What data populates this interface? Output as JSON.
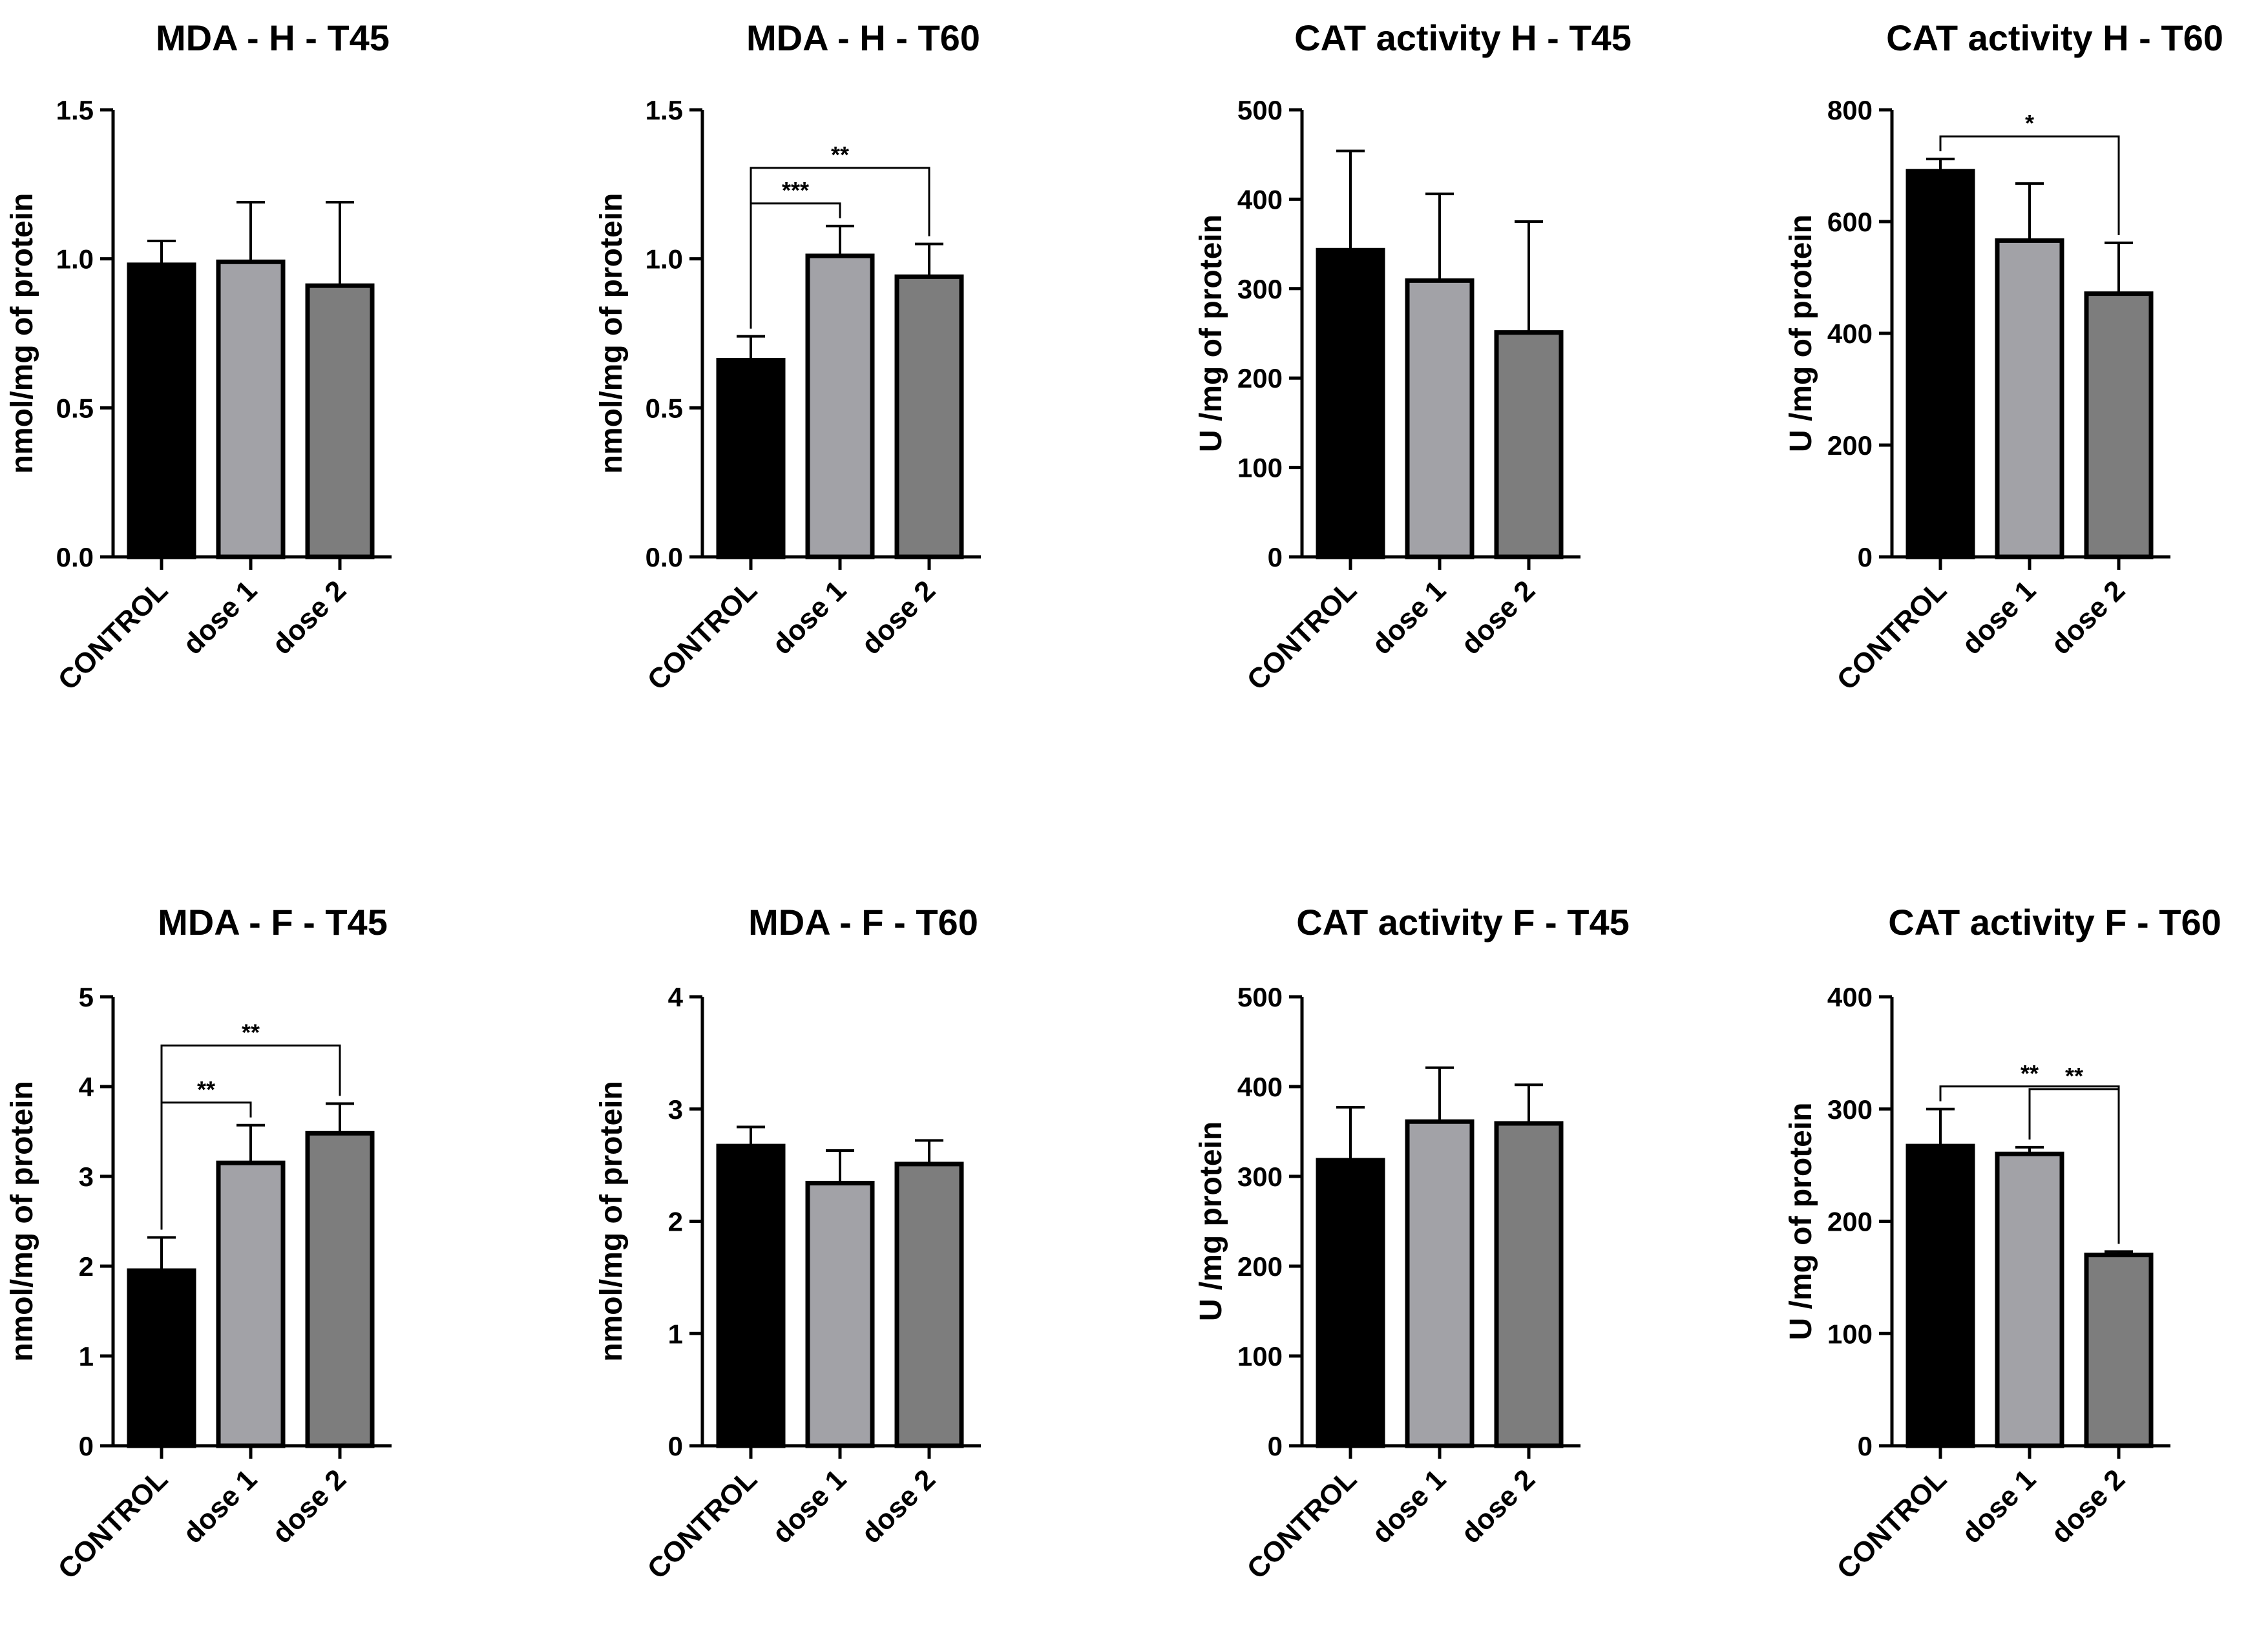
{
  "colors": {
    "control": "#000000",
    "dose1": "#a2a2a7",
    "dose2": "#7d7d7d",
    "axis": "#000000"
  },
  "chart_data": [
    {
      "type": "bar",
      "title": "MDA - H - T45",
      "ylabel": "nmol/mg of protein",
      "categories": [
        "CONTROL",
        "dose 1",
        "dose 2"
      ],
      "ylim": [
        0,
        1.5
      ],
      "ticks": [
        0,
        0.5,
        1,
        1.5
      ],
      "tick_labels": [
        "0.0",
        "0.5",
        "1.0",
        "1.5"
      ],
      "values": [
        0.98,
        0.99,
        0.91
      ],
      "errors": [
        0.08,
        0.2,
        0.28
      ],
      "significance": []
    },
    {
      "type": "bar",
      "title": "MDA - H - T60",
      "ylabel": "nmol/mg of protein",
      "categories": [
        "CONTROL",
        "dose 1",
        "dose 2"
      ],
      "ylim": [
        0,
        1.5
      ],
      "ticks": [
        0,
        0.5,
        1,
        1.5
      ],
      "tick_labels": [
        "0.0",
        "0.5",
        "1.0",
        "1.5"
      ],
      "values": [
        0.66,
        1.01,
        0.94
      ],
      "errors": [
        0.08,
        0.1,
        0.11
      ],
      "significance": [
        {
          "from": 0,
          "to": 1,
          "label": "***"
        },
        {
          "from": 0,
          "to": 2,
          "label": "**"
        }
      ]
    },
    {
      "type": "bar",
      "title": "CAT activity H - T45",
      "ylabel": "U /mg of protein",
      "categories": [
        "CONTROL",
        "dose 1",
        "dose 2"
      ],
      "ylim": [
        0,
        500
      ],
      "ticks": [
        0,
        100,
        200,
        300,
        400,
        500
      ],
      "tick_labels": [
        "0",
        "100",
        "200",
        "300",
        "400",
        "500"
      ],
      "values": [
        343,
        309,
        251
      ],
      "errors": [
        111,
        97,
        124
      ],
      "significance": []
    },
    {
      "type": "bar",
      "title": "CAT activity H - T60",
      "ylabel": "U /mg of protein",
      "categories": [
        "CONTROL",
        "dose 1",
        "dose 2"
      ],
      "ylim": [
        0,
        800
      ],
      "ticks": [
        0,
        200,
        400,
        600,
        800
      ],
      "tick_labels": [
        "0",
        "200",
        "400",
        "600",
        "800"
      ],
      "values": [
        690,
        566,
        471
      ],
      "errors": [
        22,
        102,
        91
      ],
      "significance": [
        {
          "from": 0,
          "to": 2,
          "label": "*"
        }
      ]
    },
    {
      "type": "bar",
      "title": "MDA - F - T45",
      "ylabel": "nmol/mg of protein",
      "categories": [
        "CONTROL",
        "dose 1",
        "dose 2"
      ],
      "ylim": [
        0,
        5
      ],
      "ticks": [
        0,
        1,
        2,
        3,
        4,
        5
      ],
      "tick_labels": [
        "0",
        "1",
        "2",
        "3",
        "4",
        "5"
      ],
      "values": [
        1.95,
        3.15,
        3.48
      ],
      "errors": [
        0.37,
        0.42,
        0.33
      ],
      "significance": [
        {
          "from": 0,
          "to": 1,
          "label": "**"
        },
        {
          "from": 0,
          "to": 2,
          "label": "**"
        }
      ]
    },
    {
      "type": "bar",
      "title": "MDA - F - T60",
      "ylabel": "nmol/mg of protein",
      "categories": [
        "CONTROL",
        "dose 1",
        "dose 2"
      ],
      "ylim": [
        0,
        4
      ],
      "ticks": [
        0,
        1,
        2,
        3,
        4
      ],
      "tick_labels": [
        "0",
        "1",
        "2",
        "3",
        "4"
      ],
      "values": [
        2.67,
        2.34,
        2.51
      ],
      "errors": [
        0.17,
        0.29,
        0.21
      ],
      "significance": []
    },
    {
      "type": "bar",
      "title": "CAT activity F - T45",
      "ylabel": "U /mg protein",
      "categories": [
        "CONTROL",
        "dose 1",
        "dose 2"
      ],
      "ylim": [
        0,
        500
      ],
      "ticks": [
        0,
        100,
        200,
        300,
        400,
        500
      ],
      "tick_labels": [
        "0",
        "100",
        "200",
        "300",
        "400",
        "500"
      ],
      "values": [
        318,
        361,
        359
      ],
      "errors": [
        59,
        60,
        43
      ],
      "significance": []
    },
    {
      "type": "bar",
      "title": "CAT activity F - T60",
      "ylabel": "U /mg of protein",
      "categories": [
        "CONTROL",
        "dose 1",
        "dose 2"
      ],
      "ylim": [
        0,
        400
      ],
      "ticks": [
        0,
        100,
        200,
        300,
        400
      ],
      "tick_labels": [
        "0",
        "100",
        "200",
        "300",
        "400"
      ],
      "values": [
        267,
        260,
        170
      ],
      "errors": [
        33,
        6,
        3
      ],
      "significance": [
        {
          "from": 0,
          "to": 2,
          "label": "**"
        },
        {
          "from": 1,
          "to": 2,
          "label": "**"
        }
      ]
    }
  ]
}
